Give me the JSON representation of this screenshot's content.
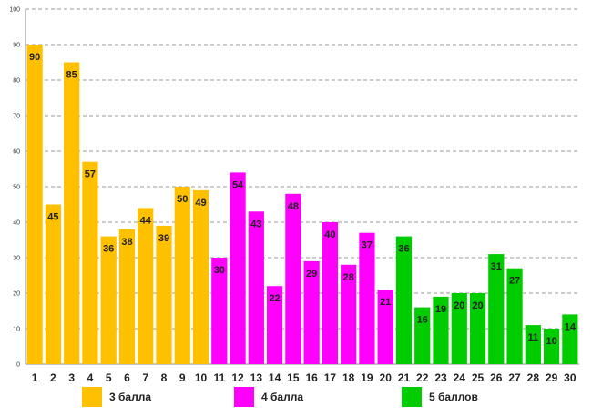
{
  "chart_data": {
    "type": "bar",
    "categories": [
      "1",
      "2",
      "3",
      "4",
      "5",
      "6",
      "7",
      "8",
      "9",
      "10",
      "11",
      "12",
      "13",
      "14",
      "15",
      "16",
      "17",
      "18",
      "19",
      "20",
      "21",
      "22",
      "23",
      "24",
      "25",
      "26",
      "27",
      "28",
      "29",
      "30"
    ],
    "values": [
      90,
      45,
      85,
      57,
      36,
      38,
      44,
      39,
      50,
      49,
      30,
      54,
      43,
      22,
      48,
      29,
      40,
      28,
      37,
      21,
      36,
      16,
      19,
      20,
      20,
      31,
      27,
      11,
      10,
      14
    ],
    "groups": [
      0,
      0,
      0,
      0,
      0,
      0,
      0,
      0,
      0,
      0,
      1,
      1,
      1,
      1,
      1,
      1,
      1,
      1,
      1,
      1,
      2,
      2,
      2,
      2,
      2,
      2,
      2,
      2,
      2,
      2
    ],
    "ylim": [
      0,
      100
    ],
    "yticks": [
      0,
      10,
      20,
      30,
      40,
      50,
      60,
      70,
      80,
      90,
      100
    ],
    "grid": true,
    "title": "",
    "xlabel": "",
    "ylabel": "",
    "legend": [
      {
        "label": "3 балла",
        "color": "#FFC000"
      },
      {
        "label": "4 балла",
        "color": "#FF00FF"
      },
      {
        "label": "5 баллов",
        "color": "#00CC00"
      }
    ]
  }
}
